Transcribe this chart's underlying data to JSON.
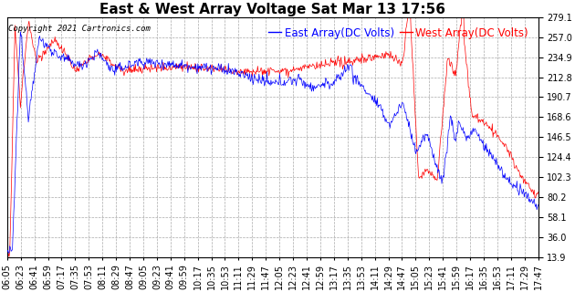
{
  "title": "East & West Array Voltage Sat Mar 13 17:56",
  "copyright": "Copyright 2021 Cartronics.com",
  "legend_east": "East Array(DC Volts)",
  "legend_west": "West Array(DC Volts)",
  "color_east": "blue",
  "color_west": "red",
  "color_copyright": "black",
  "yticks": [
    13.9,
    36.0,
    58.1,
    80.2,
    102.3,
    124.4,
    146.5,
    168.6,
    190.7,
    212.8,
    234.9,
    257.0,
    279.1
  ],
  "ymin": 13.9,
  "ymax": 279.1,
  "background_color": "#ffffff",
  "grid_color": "#aaaaaa",
  "grid_style": "--",
  "title_fontsize": 11,
  "legend_fontsize": 8.5,
  "tick_fontsize": 7,
  "xtick_labels": [
    "06:05",
    "06:23",
    "06:41",
    "06:59",
    "07:17",
    "07:35",
    "07:53",
    "08:11",
    "08:29",
    "08:47",
    "09:05",
    "09:23",
    "09:41",
    "09:59",
    "10:17",
    "10:35",
    "10:53",
    "11:11",
    "11:29",
    "11:47",
    "12:05",
    "12:23",
    "12:41",
    "12:59",
    "13:17",
    "13:35",
    "13:53",
    "14:11",
    "14:29",
    "14:47",
    "15:05",
    "15:23",
    "15:41",
    "15:59",
    "16:17",
    "16:35",
    "16:53",
    "17:11",
    "17:29",
    "17:47"
  ]
}
